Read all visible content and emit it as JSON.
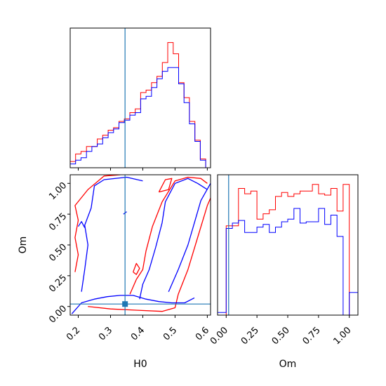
{
  "chart_data": {
    "type": "corner",
    "title": "",
    "colors": {
      "red": "#ff0000",
      "blue": "#0000ff",
      "truth": "#1f77b4"
    },
    "truth": {
      "H0": 0.345,
      "Om": 0.02
    },
    "panels": [
      {
        "id": "hist_H0",
        "type": "histogram",
        "xlim": [
          0.175,
          0.61
        ],
        "xticks": [
          0.2,
          0.3,
          0.4,
          0.5,
          0.6
        ],
        "bin_edges": [
          0.175,
          0.1918,
          0.2086,
          0.2254,
          0.2422,
          0.259,
          0.2758,
          0.2926,
          0.3094,
          0.3262,
          0.343,
          0.3598,
          0.3766,
          0.3934,
          0.4102,
          0.427,
          0.4438,
          0.4606,
          0.4774,
          0.4942,
          0.511,
          0.5278,
          0.5446,
          0.5614,
          0.5782,
          0.595,
          0.61
        ],
        "series": [
          {
            "color": "red",
            "values": [
              0.05,
              0.11,
              0.13,
              0.17,
              0.17,
              0.23,
              0.26,
              0.3,
              0.32,
              0.37,
              0.39,
              0.44,
              0.47,
              0.6,
              0.62,
              0.68,
              0.73,
              0.84,
              1.0,
              0.91,
              0.68,
              0.56,
              0.37,
              0.22,
              0.07,
              0.0
            ]
          },
          {
            "color": "blue",
            "values": [
              0.03,
              0.06,
              0.08,
              0.13,
              0.17,
              0.19,
              0.24,
              0.28,
              0.31,
              0.36,
              0.38,
              0.42,
              0.44,
              0.55,
              0.57,
              0.64,
              0.71,
              0.77,
              0.8,
              0.8,
              0.67,
              0.52,
              0.35,
              0.21,
              0.06,
              0.0
            ]
          }
        ]
      },
      {
        "id": "contour_H0_Om",
        "type": "contour",
        "xlim": [
          0.175,
          0.61
        ],
        "ylim": [
          -0.07,
          1.07
        ],
        "xticks": [
          "0.2",
          "0.3",
          "0.4",
          "0.5",
          "0.6"
        ],
        "yticks": [
          "0.00",
          "0.25",
          "0.50",
          "0.75",
          "1.00"
        ],
        "xlabel": "H0",
        "ylabel": "Om",
        "series": [
          {
            "color": "red",
            "contours": [
              [
                [
                  0.19,
                  0.28
                ],
                [
                  0.2,
                  0.42
                ],
                [
                  0.19,
                  0.56
                ],
                [
                  0.2,
                  0.7
                ],
                [
                  0.19,
                  0.82
                ],
                [
                  0.23,
                  0.95
                ],
                [
                  0.28,
                  1.06
                ],
                [
                  0.33,
                  1.07
                ]
              ],
              [
                [
                  0.23,
                  0.0
                ],
                [
                  0.3,
                  -0.02
                ],
                [
                  0.38,
                  -0.03
                ],
                [
                  0.46,
                  -0.04
                ],
                [
                  0.5,
                  -0.01
                ],
                [
                  0.51,
                  0.1
                ],
                [
                  0.54,
                  0.3
                ],
                [
                  0.57,
                  0.56
                ],
                [
                  0.6,
                  0.82
                ],
                [
                  0.61,
                  0.88
                ]
              ],
              [
                [
                  0.36,
                  0.1
                ],
                [
                  0.38,
                  0.22
                ],
                [
                  0.4,
                  0.3
                ],
                [
                  0.41,
                  0.45
                ],
                [
                  0.43,
                  0.65
                ],
                [
                  0.46,
                  0.85
                ],
                [
                  0.5,
                  1.02
                ],
                [
                  0.54,
                  1.05
                ],
                [
                  0.58,
                  1.04
                ],
                [
                  0.6,
                  1.0
                ]
              ],
              [
                [
                  0.37,
                  0.28
                ],
                [
                  0.38,
                  0.35
                ],
                [
                  0.39,
                  0.31
                ],
                [
                  0.38,
                  0.26
                ],
                [
                  0.37,
                  0.28
                ]
              ],
              [
                [
                  0.45,
                  0.93
                ],
                [
                  0.47,
                  1.03
                ],
                [
                  0.49,
                  1.04
                ],
                [
                  0.48,
                  0.95
                ],
                [
                  0.45,
                  0.93
                ]
              ]
            ]
          },
          {
            "color": "blue",
            "contours": [
              [
                [
                  0.18,
                  -0.06
                ],
                [
                  0.21,
                  0.03
                ],
                [
                  0.25,
                  0.06
                ],
                [
                  0.29,
                  0.08
                ],
                [
                  0.33,
                  0.09
                ],
                [
                  0.37,
                  0.09
                ],
                [
                  0.41,
                  0.06
                ],
                [
                  0.45,
                  0.04
                ],
                [
                  0.49,
                  0.03
                ],
                [
                  0.53,
                  0.03
                ],
                [
                  0.56,
                  0.07
                ]
              ],
              [
                [
                  0.39,
                  0.06
                ],
                [
                  0.4,
                  0.18
                ],
                [
                  0.42,
                  0.3
                ],
                [
                  0.44,
                  0.48
                ],
                [
                  0.46,
                  0.68
                ],
                [
                  0.47,
                  0.85
                ],
                [
                  0.5,
                  1.0
                ],
                [
                  0.54,
                  1.04
                ],
                [
                  0.57,
                  1.0
                ],
                [
                  0.6,
                  0.95
                ]
              ],
              [
                [
                  0.21,
                  0.12
                ],
                [
                  0.22,
                  0.3
                ],
                [
                  0.23,
                  0.5
                ],
                [
                  0.22,
                  0.66
                ],
                [
                  0.24,
                  0.8
                ],
                [
                  0.25,
                  0.98
                ],
                [
                  0.28,
                  1.03
                ],
                [
                  0.35,
                  1.05
                ],
                [
                  0.4,
                  1.02
                ]
              ],
              [
                [
                  0.48,
                  0.12
                ],
                [
                  0.51,
                  0.3
                ],
                [
                  0.54,
                  0.5
                ],
                [
                  0.56,
                  0.68
                ],
                [
                  0.58,
                  0.86
                ],
                [
                  0.61,
                  1.0
                ]
              ],
              [
                [
                  0.34,
                  0.75
                ],
                [
                  0.35,
                  0.77
                ]
              ],
              [
                [
                  0.2,
                  0.65
                ],
                [
                  0.21,
                  0.69
                ],
                [
                  0.22,
                  0.64
                ]
              ]
            ]
          }
        ]
      },
      {
        "id": "hist_Om",
        "type": "histogram",
        "xlim": [
          -0.07,
          1.07
        ],
        "xticks": [
          "0.00",
          "0.25",
          "0.50",
          "0.75",
          "1.00"
        ],
        "xlabel": "Om",
        "bin_edges": [
          -0.07,
          0.0,
          0.05,
          0.1,
          0.15,
          0.2,
          0.25,
          0.3,
          0.35,
          0.4,
          0.45,
          0.5,
          0.55,
          0.6,
          0.65,
          0.7,
          0.75,
          0.8,
          0.85,
          0.9,
          0.95,
          1.0,
          1.07
        ],
        "series": [
          {
            "color": "red",
            "values": [
              0.0,
              0.67,
              0.67,
              0.95,
              0.91,
              0.93,
              0.72,
              0.76,
              0.79,
              0.89,
              0.92,
              0.89,
              0.91,
              0.93,
              0.93,
              0.98,
              0.91,
              0.9,
              0.95,
              0.78,
              0.98,
              0.0
            ]
          },
          {
            "color": "blue",
            "values": [
              0.02,
              0.65,
              0.69,
              0.71,
              0.62,
              0.62,
              0.66,
              0.68,
              0.62,
              0.66,
              0.7,
              0.72,
              0.8,
              0.69,
              0.7,
              0.7,
              0.8,
              0.68,
              0.75,
              0.59,
              0.0,
              0.17
            ]
          }
        ]
      }
    ]
  }
}
